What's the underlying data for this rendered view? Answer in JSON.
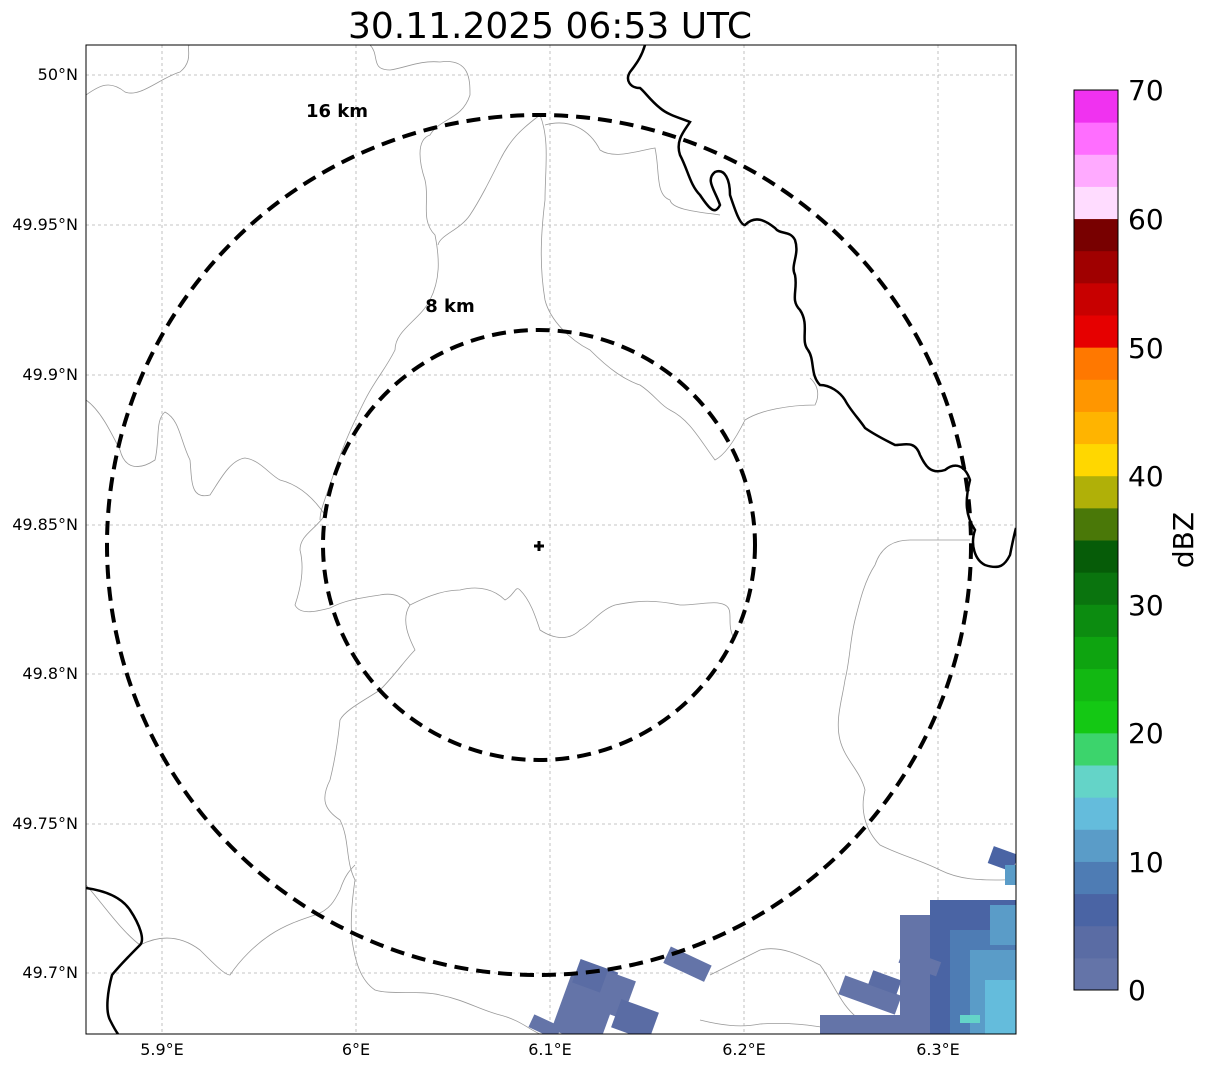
{
  "title": "30.11.2025 06:53 UTC",
  "map": {
    "lon_ticks": [
      "5.9°E",
      "6°E",
      "6.1°E",
      "6.2°E",
      "6.3°E"
    ],
    "lat_ticks": [
      "50°N",
      "49.95°N",
      "49.9°N",
      "49.85°N",
      "49.8°N",
      "49.75°N",
      "49.7°N"
    ],
    "range_rings": [
      {
        "label": "16 km",
        "radius_km": 16
      },
      {
        "label": "8 km",
        "radius_km": 8
      }
    ],
    "radar_site_marker": "plus-icon",
    "border_color": "#000000",
    "admin_boundary_color": "#999999",
    "grid": true
  },
  "colorbar": {
    "label": "dBZ",
    "ticks": [
      "0",
      "10",
      "20",
      "30",
      "40",
      "50",
      "60",
      "70"
    ],
    "min": 0,
    "max": 70,
    "step": 2.5,
    "colors": [
      "#6474a8",
      "#5a6ca4",
      "#4a64a4",
      "#4e7cb4",
      "#5a9cc8",
      "#64bcdc",
      "#64d4c8",
      "#3cd46c",
      "#14c814",
      "#12b812",
      "#0ea410",
      "#0c8c10",
      "#0a740e",
      "#065c08",
      "#4a7808",
      "#b0b008",
      "#ffd700",
      "#ffb400",
      "#ff9600",
      "#ff7800",
      "#e60000",
      "#c80000",
      "#a00000",
      "#780000",
      "#ffdcff",
      "#ffaaff",
      "#ff6eff",
      "#f032f0"
    ]
  }
}
